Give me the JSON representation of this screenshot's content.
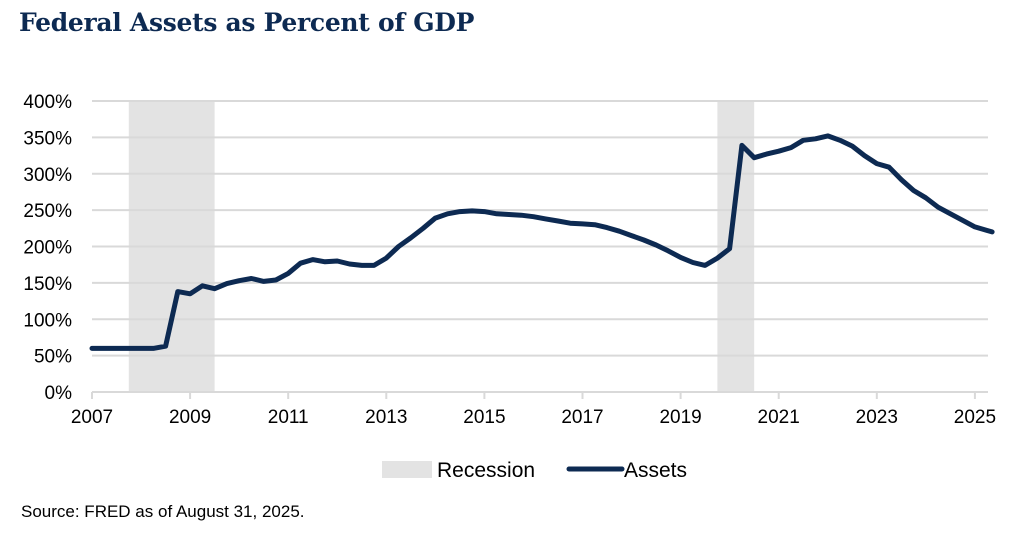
{
  "chart_data": {
    "type": "line",
    "title": "Federal Assets as Percent of GDP",
    "xlabel": "",
    "ylabel": "",
    "xlim": [
      2007,
      2025.35
    ],
    "ylim": [
      0,
      400
    ],
    "x_ticks": [
      2007,
      2009,
      2011,
      2013,
      2015,
      2017,
      2019,
      2021,
      2023,
      2025
    ],
    "x_tick_labels": [
      "2007",
      "2009",
      "2011",
      "2013",
      "2015",
      "2017",
      "2019",
      "2021",
      "2023",
      "2025"
    ],
    "y_ticks": [
      0,
      50,
      100,
      150,
      200,
      250,
      300,
      350,
      400
    ],
    "y_tick_labels": [
      "0%",
      "50%",
      "100%",
      "150%",
      "200%",
      "250%",
      "300%",
      "350%",
      "400%"
    ],
    "grid": "horizontal",
    "legend_position": "bottom",
    "colors": {
      "assets": "#0d2a52",
      "recession": "#e3e3e3",
      "grid": "#d9d9d9"
    },
    "recessions": [
      {
        "name": "Recession",
        "start": 2007.75,
        "end": 2009.5
      },
      {
        "name": "Recession",
        "start": 2019.75,
        "end": 2020.5
      }
    ],
    "series": [
      {
        "name": "Assets",
        "x": [
          2007.0,
          2007.25,
          2007.5,
          2007.75,
          2008.0,
          2008.25,
          2008.5,
          2008.75,
          2009.0,
          2009.25,
          2009.5,
          2009.75,
          2010.0,
          2010.25,
          2010.5,
          2010.75,
          2011.0,
          2011.25,
          2011.5,
          2011.75,
          2012.0,
          2012.25,
          2012.5,
          2012.75,
          2013.0,
          2013.25,
          2013.5,
          2013.75,
          2014.0,
          2014.25,
          2014.5,
          2014.75,
          2015.0,
          2015.25,
          2015.5,
          2015.75,
          2016.0,
          2016.25,
          2016.5,
          2016.75,
          2017.0,
          2017.25,
          2017.5,
          2017.75,
          2018.0,
          2018.25,
          2018.5,
          2018.75,
          2019.0,
          2019.25,
          2019.5,
          2019.75,
          2020.0,
          2020.25,
          2020.5,
          2020.75,
          2021.0,
          2021.25,
          2021.5,
          2021.75,
          2022.0,
          2022.25,
          2022.5,
          2022.75,
          2023.0,
          2023.25,
          2023.5,
          2023.75,
          2024.0,
          2024.25,
          2024.5,
          2024.75,
          2025.0,
          2025.25,
          2025.35
        ],
        "values": [
          60,
          60,
          60,
          60,
          60,
          60,
          63,
          138,
          135,
          146,
          142,
          149,
          153,
          156,
          152,
          154,
          163,
          177,
          182,
          179,
          180,
          176,
          174,
          174,
          184,
          200,
          212,
          225,
          239,
          245,
          248,
          249,
          248,
          245,
          244,
          243,
          241,
          238,
          235,
          232,
          231,
          230,
          226,
          221,
          215,
          209,
          202,
          194,
          185,
          178,
          174,
          184,
          197,
          339,
          322,
          327,
          331,
          336,
          346,
          348,
          352,
          346,
          338,
          325,
          314,
          309,
          292,
          277,
          267,
          254,
          245,
          236,
          227,
          222,
          220
        ]
      }
    ],
    "legend": [
      {
        "label": "Recession",
        "kind": "area"
      },
      {
        "label": "Assets",
        "kind": "line"
      }
    ]
  },
  "source_note": "Source: FRED as of August 31, 2025."
}
